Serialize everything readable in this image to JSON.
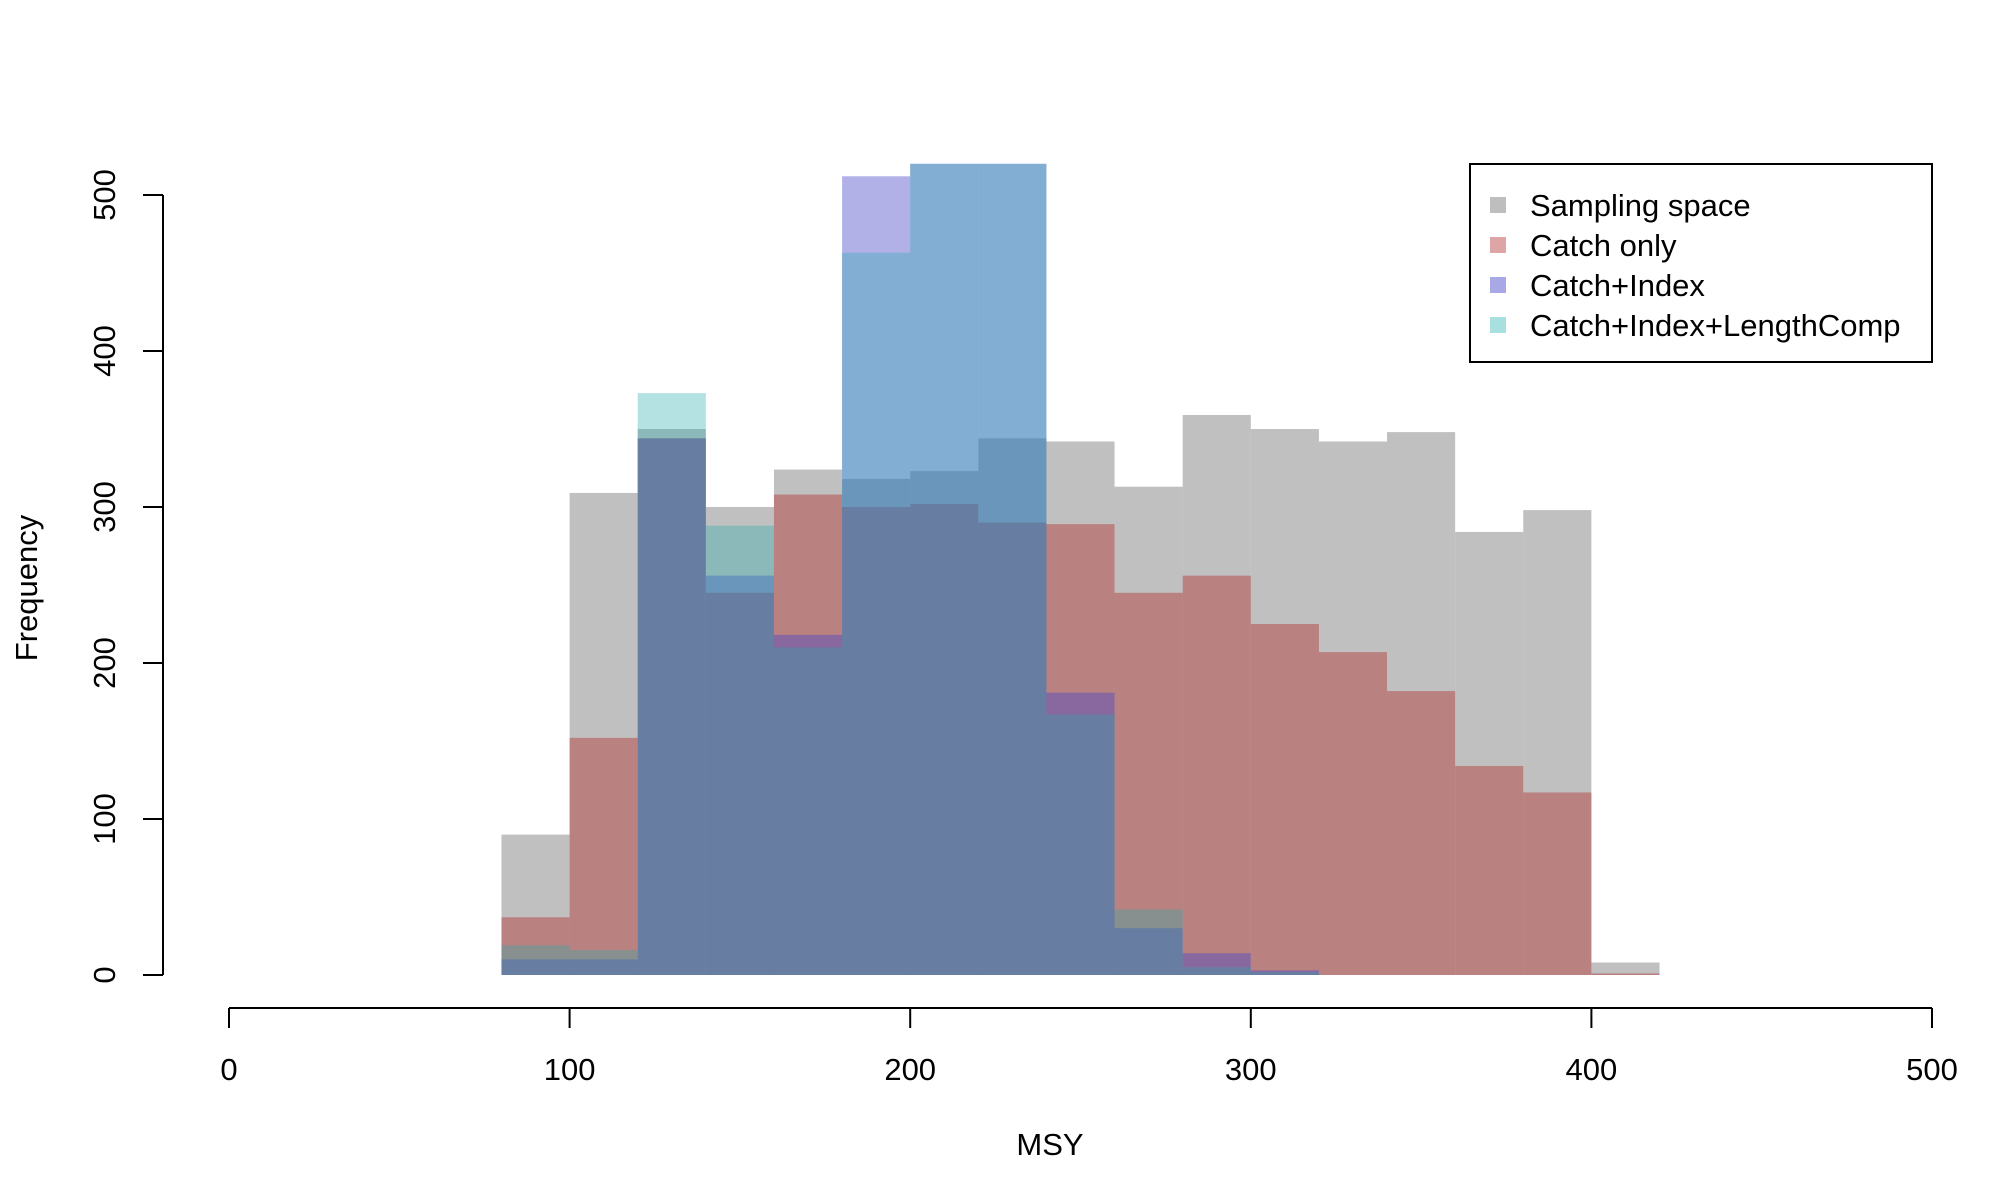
{
  "chart_data": {
    "type": "histogram",
    "xlabel": "MSY",
    "ylabel": "Frequency",
    "xlim": [
      0,
      500
    ],
    "ylim": [
      0,
      520
    ],
    "x_ticks": [
      0,
      100,
      200,
      300,
      400,
      500
    ],
    "y_ticks": [
      0,
      100,
      200,
      300,
      400,
      500
    ],
    "bin_edges": [
      80,
      100,
      120,
      140,
      160,
      180,
      200,
      220,
      240,
      260,
      280,
      300,
      320,
      340,
      360,
      380,
      400,
      420
    ],
    "series": [
      {
        "name": "Sampling space",
        "color": "rgba(150,150,150,0.6)",
        "legend_color": "#bebebe",
        "values": [
          90,
          309,
          350,
          300,
          324,
          318,
          323,
          344,
          342,
          313,
          359,
          350,
          342,
          348,
          284,
          298,
          8
        ]
      },
      {
        "name": "Catch only",
        "color": "rgba(178,34,34,0.4)",
        "legend_color": "#dda5a5",
        "values": [
          37,
          152,
          344,
          245,
          308,
          300,
          302,
          290,
          289,
          245,
          256,
          225,
          207,
          182,
          134,
          117,
          1
        ]
      },
      {
        "name": "Catch+Index",
        "color": "rgba(70,70,200,0.42)",
        "legend_color": "#a8a8e6",
        "values": [
          10,
          10,
          344,
          256,
          218,
          512,
          520,
          520,
          181,
          30,
          14,
          3,
          0,
          0,
          0,
          0,
          0
        ]
      },
      {
        "name": "Catch+Index+LengthComp",
        "color": "rgba(40,170,170,0.35)",
        "legend_color": "#a8e0e0",
        "values": [
          19,
          16,
          373,
          288,
          210,
          463,
          520,
          520,
          167,
          42,
          5,
          2,
          0,
          0,
          0,
          0,
          0
        ]
      }
    ],
    "legend_position": "top-right"
  }
}
